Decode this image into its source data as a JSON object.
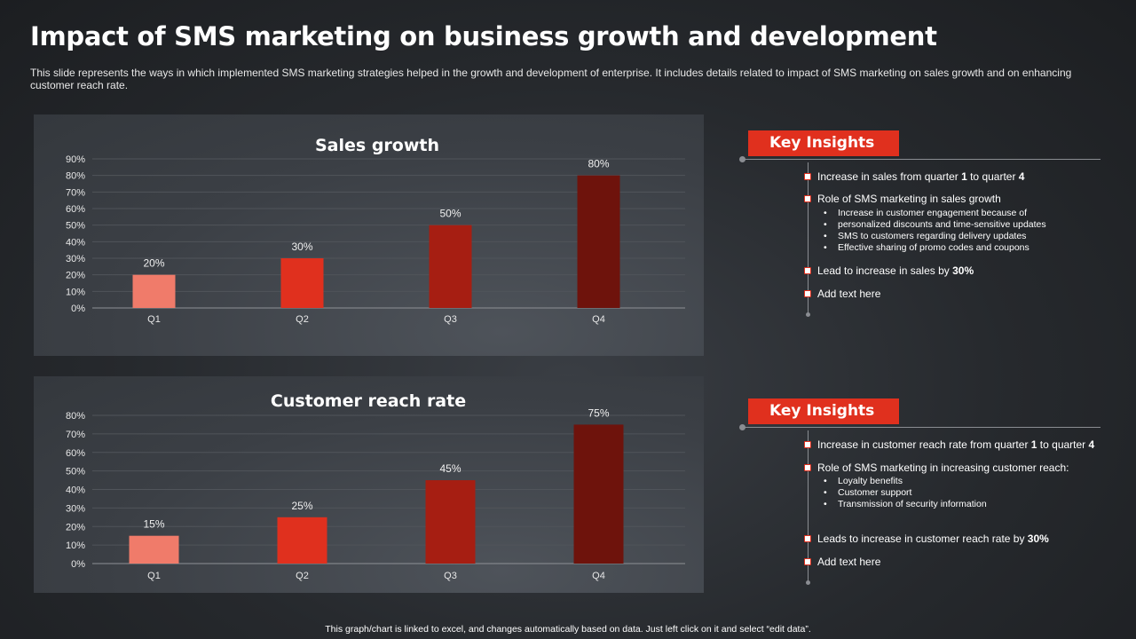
{
  "title": "Impact of SMS marketing on business growth and development",
  "subtitle": "This slide represents the ways in which implemented SMS marketing strategies helped in the growth and development of enterprise. It includes details related to impact of SMS marketing on sales growth and on enhancing customer reach rate.",
  "footer": "This graph/chart is linked to excel, and changes automatically based on data. Just left click on it and select “edit data”.",
  "colors": [
    "#f07b6a",
    "#e0301e",
    "#a61e12",
    "#6e130c"
  ],
  "chart_data": [
    {
      "type": "bar",
      "title": "Sales growth",
      "categories": [
        "Q1",
        "Q2",
        "Q3",
        "Q4"
      ],
      "values": [
        20,
        30,
        50,
        80
      ],
      "labels": [
        "20%",
        "30%",
        "50%",
        "80%"
      ],
      "yticks": [
        "0%",
        "10%",
        "20%",
        "30%",
        "40%",
        "50%",
        "60%",
        "70%",
        "80%",
        "90%"
      ],
      "ylim": [
        0,
        90
      ],
      "xlabel": "",
      "ylabel": "",
      "grid": true
    },
    {
      "type": "bar",
      "title": "Customer  reach rate",
      "categories": [
        "Q1",
        "Q2",
        "Q3",
        "Q4"
      ],
      "values": [
        15,
        25,
        45,
        75
      ],
      "labels": [
        "15%",
        "25%",
        "45%",
        "75%"
      ],
      "yticks": [
        "0%",
        "10%",
        "20%",
        "30%",
        "40%",
        "50%",
        "60%",
        "70%",
        "80%"
      ],
      "ylim": [
        0,
        80
      ],
      "xlabel": "",
      "ylabel": "",
      "grid": true
    }
  ],
  "insights1": {
    "heading": "Key Insights",
    "items": [
      {
        "pre": "Increase in sales from quarter ",
        "b1": "1",
        "mid": " to quarter ",
        "b2": "4"
      },
      {
        "pre": "Role of SMS  marketing in sales growth"
      },
      {
        "pre": "Lead to increase in sales by ",
        "b1": "30%"
      },
      {
        "pre": "Add text here"
      }
    ],
    "subs": [
      "Increase in customer engagement because of",
      "personalized discounts and time-sensitive updates",
      "SMS to customers regarding delivery updates",
      "Effective sharing of promo codes and coupons"
    ]
  },
  "insights2": {
    "heading": "Key Insights",
    "items": [
      {
        "pre": "Increase in customer reach rate from quarter ",
        "b1": "1",
        "mid": " to quarter ",
        "b2": "4"
      },
      {
        "pre": "Role of SMS  marketing in increasing customer reach:"
      },
      {
        "pre": "Leads to increase in customer reach rate by ",
        "b1": "30%"
      },
      {
        "pre": "Add text here"
      }
    ],
    "subs": [
      "Loyalty benefits",
      "Customer support",
      "Transmission of security information"
    ]
  }
}
